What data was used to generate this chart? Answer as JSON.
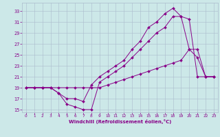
{
  "xlabel": "Windchill (Refroidissement éolien,°C)",
  "bg_color": "#cce8e8",
  "line_color": "#880088",
  "grid_color": "#aabbcc",
  "xlim": [
    -0.5,
    23.5
  ],
  "ylim": [
    14.5,
    34.5
  ],
  "yticks": [
    15,
    17,
    19,
    21,
    23,
    25,
    27,
    29,
    31,
    33
  ],
  "xticks": [
    0,
    1,
    2,
    3,
    4,
    5,
    6,
    7,
    8,
    9,
    10,
    11,
    12,
    13,
    14,
    15,
    16,
    17,
    18,
    19,
    20,
    21,
    22,
    23
  ],
  "curve1_x": [
    0,
    1,
    2,
    3,
    4,
    5,
    6,
    7,
    8,
    9,
    10,
    11,
    12,
    13,
    14,
    15,
    16,
    17,
    18,
    19,
    20,
    21,
    22,
    23
  ],
  "curve1_y": [
    19,
    19,
    19,
    19,
    18,
    16,
    15.5,
    15,
    15,
    20,
    21,
    22,
    23,
    24.5,
    26,
    27.5,
    29,
    30,
    32,
    32,
    26,
    24.5,
    21,
    21
  ],
  "curve2_x": [
    0,
    1,
    2,
    3,
    4,
    5,
    6,
    7,
    8,
    9,
    10,
    11,
    12,
    13,
    14,
    15,
    16,
    17,
    18,
    19,
    20,
    21,
    22,
    23
  ],
  "curve2_y": [
    19,
    19,
    19,
    19,
    18,
    17,
    17,
    16.5,
    19.5,
    21,
    22,
    23,
    24,
    26,
    27.5,
    30,
    31,
    32.5,
    33.5,
    32,
    31.5,
    21,
    21,
    21
  ],
  "curve3_x": [
    0,
    1,
    2,
    3,
    4,
    5,
    6,
    7,
    8,
    9,
    10,
    11,
    12,
    13,
    14,
    15,
    16,
    17,
    18,
    19,
    20,
    21,
    22,
    23
  ],
  "curve3_y": [
    19,
    19,
    19,
    19,
    19,
    19,
    19,
    19,
    19,
    19,
    19.5,
    20,
    20.5,
    21,
    21.5,
    22,
    22.5,
    23,
    23.5,
    24,
    26,
    26,
    21,
    21
  ]
}
